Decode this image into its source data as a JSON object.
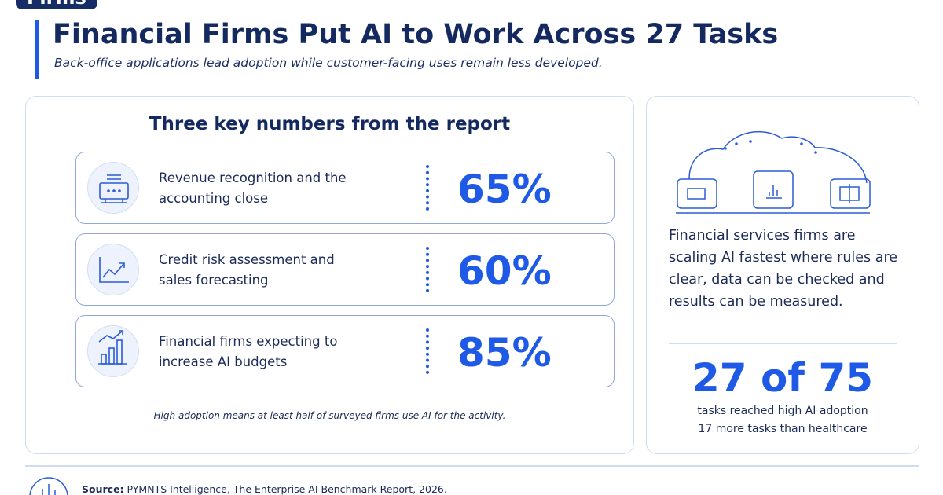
{
  "badge": "Firms",
  "header": {
    "title": "Financial Firms Put AI to Work Across 27 Tasks",
    "subtitle": "Back-office applications lead adoption while customer-facing uses remain less developed."
  },
  "key_numbers": {
    "title": "Three key numbers from the report",
    "items": [
      {
        "label": "Revenue recognition and the accounting close",
        "stat": "65%"
      },
      {
        "label": "Credit risk assessment and sales forecasting",
        "stat": "60%"
      },
      {
        "label": "Financial firms expecting to increase AI budgets",
        "stat": "85%"
      }
    ],
    "note": "High adoption means at least half of surveyed firms use AI for the activity."
  },
  "side": {
    "text": "Financial services firms are scaling AI fastest where rules are clear, data can be checked and results can be measured.",
    "stat": "27 of 75",
    "lines": [
      "tasks reached high AI adoption",
      "17 more tasks than healthcare"
    ]
  },
  "footer": {
    "source_label": "Source:",
    "source": "PYMNTS Intelligence, The Enterprise AI Benchmark Report, 2026."
  }
}
